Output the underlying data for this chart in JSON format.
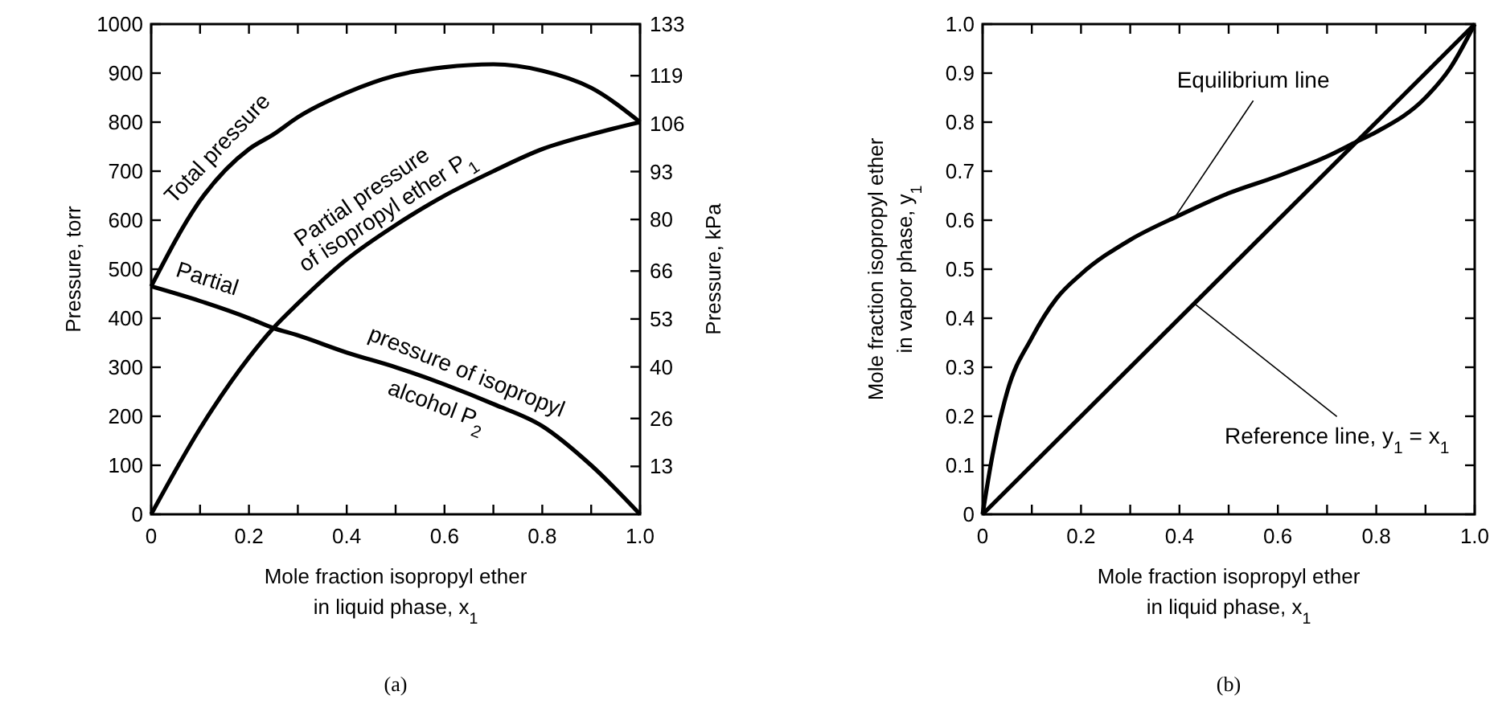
{
  "chart_data": [
    {
      "type": "line",
      "xlabel": "Mole fraction isopropyl ether\nin liquid phase, x$_{1}$",
      "ylabel": "Pressure, torr",
      "y2label": "Pressure, kPa",
      "annotations": [
        "(a)"
      ],
      "xlim": [
        0,
        1
      ],
      "xticks": [
        0,
        {
          "value": 0.1,
          "label": null
        },
        0.2,
        {
          "value": 0.3,
          "label": null
        },
        0.4,
        {
          "value": 0.5,
          "label": null
        },
        0.6,
        {
          "value": 0.7,
          "label": null
        },
        0.8,
        {
          "value": 0.9,
          "label": null
        },
        {
          "value": 1,
          "label": "1.0"
        }
      ],
      "ylim": [
        0,
        1000
      ],
      "yticks": [
        0,
        100,
        200,
        300,
        400,
        500,
        600,
        700,
        800,
        900,
        1000
      ],
      "y2lim": [
        0,
        133
      ],
      "y2ticks": [
        13,
        26,
        40,
        53,
        66,
        80,
        93,
        106,
        119,
        133
      ],
      "x": [
        0,
        0.1,
        0.2,
        0.25,
        0.3,
        0.4,
        0.5,
        0.6,
        0.7,
        0.8,
        0.9,
        1
      ],
      "grid": false,
      "line_style": "solid",
      "marker": "none",
      "series": [
        {
          "name": "Total pressure",
          "color": "#000000",
          "values": [
            465,
            640,
            745,
            775,
            810,
            860,
            895,
            912,
            918,
            905,
            870,
            800
          ]
        },
        {
          "name": "Partial pressure\nof isopropyl ether P$_{1}$",
          "color": "#000000",
          "values": [
            0,
            175,
            320,
            380,
            430,
            520,
            590,
            650,
            700,
            745,
            775,
            800
          ]
        },
        {
          "name": "Partial\npressure of isopropyl\nalcohol P$_{2}$",
          "color": "#000000",
          "values": [
            465,
            435,
            400,
            380,
            365,
            330,
            300,
            265,
            225,
            180,
            100,
            0
          ]
        }
      ]
    },
    {
      "type": "line",
      "xlabel": "Mole fraction isopropyl ether\nin liquid phase, x$_{1}$",
      "ylabel": "Mole fraction isopropyl ether\nin vapor phase, y$_{1}$",
      "annotations": [
        "(b)"
      ],
      "xlim": [
        0,
        1
      ],
      "xticks": [
        0,
        {
          "value": 0.1,
          "label": null
        },
        0.2,
        {
          "value": 0.3,
          "label": null
        },
        0.4,
        {
          "value": 0.5,
          "label": null
        },
        0.6,
        {
          "value": 0.7,
          "label": null
        },
        0.8,
        {
          "value": 0.9,
          "label": null
        },
        {
          "value": 1,
          "label": "1.0"
        }
      ],
      "ylim": [
        0,
        1
      ],
      "yticks": [
        0,
        0.1,
        0.2,
        0.3,
        0.4,
        0.5,
        0.6,
        0.7,
        0.8,
        0.9,
        {
          "value": 1,
          "label": "1.0"
        }
      ],
      "grid": false,
      "line_style": "solid",
      "marker": "none",
      "series": [
        {
          "name": "Equilibrium line",
          "color": "#000000",
          "x": [
            0,
            0.02,
            0.05,
            0.1,
            0.15,
            0.2,
            0.3,
            0.4,
            0.5,
            0.6,
            0.7,
            0.76,
            0.8,
            0.9,
            0.95,
            1
          ],
          "values": [
            0,
            0.12,
            0.25,
            0.36,
            0.44,
            0.49,
            0.56,
            0.61,
            0.655,
            0.69,
            0.73,
            0.76,
            0.78,
            0.85,
            0.91,
            1
          ]
        },
        {
          "name": "Reference line, y$_{1}$ = x$_{1}$",
          "color": "#000000",
          "x": [
            0,
            1
          ],
          "values": [
            0,
            1
          ]
        }
      ]
    }
  ]
}
